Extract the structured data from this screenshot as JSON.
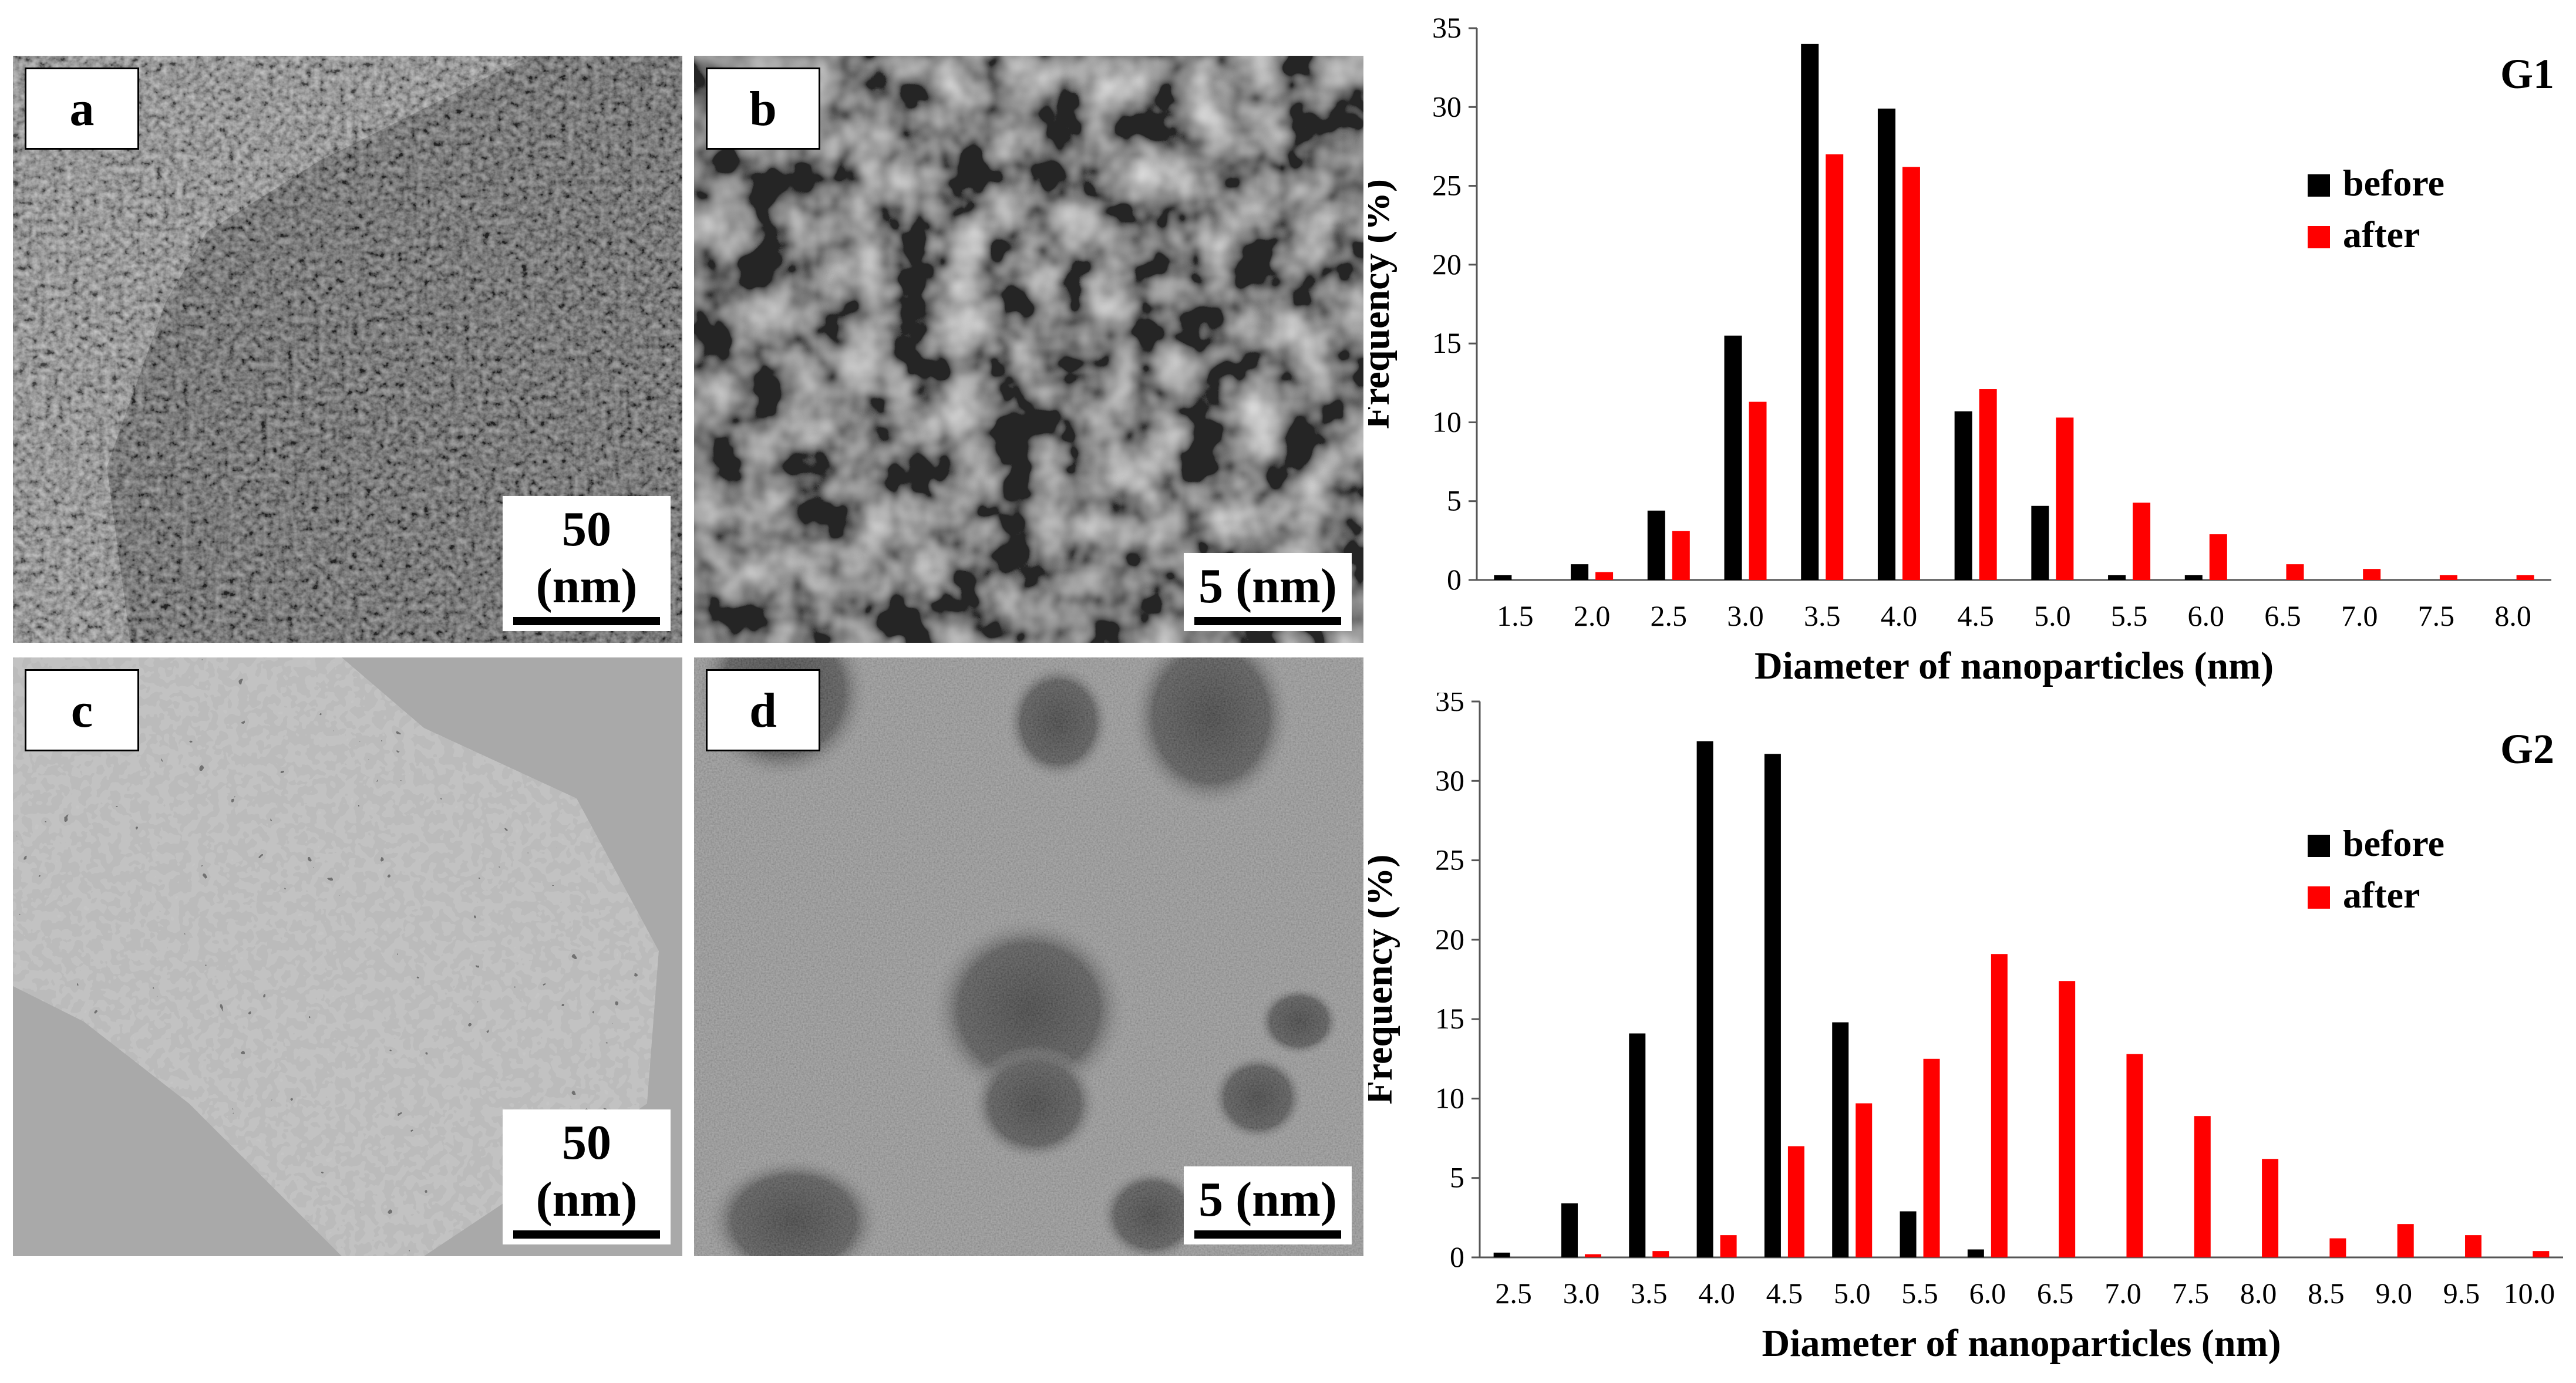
{
  "panels": [
    {
      "id": "a",
      "label": "a",
      "scale": "50 (nm)"
    },
    {
      "id": "b",
      "label": "b",
      "scale": "5 (nm)"
    },
    {
      "id": "c",
      "label": "c",
      "scale": "50 (nm)"
    },
    {
      "id": "d",
      "label": "d",
      "scale": "5 (nm)"
    }
  ],
  "chart_data": [
    {
      "type": "bar",
      "title": "G1",
      "xlabel": "Diameter of nanoparticles (nm)",
      "ylabel": "Frequency (%)",
      "ylim": [
        0,
        35
      ],
      "yticks": [
        "0",
        "5",
        "10",
        "15",
        "20",
        "25",
        "30",
        "35"
      ],
      "grid": false,
      "legend_position": "top-right",
      "categories": [
        "1.5",
        "2.0",
        "2.5",
        "3.0",
        "3.5",
        "4.0",
        "4.5",
        "5.0",
        "5.5",
        "6.0",
        "6.5",
        "7.0",
        "7.5",
        "8.0"
      ],
      "series": [
        {
          "name": "before",
          "color": "#000000",
          "values": [
            0.3,
            1.0,
            4.4,
            15.5,
            34.0,
            29.9,
            10.7,
            4.7,
            0.3,
            0.3,
            0,
            0,
            0,
            0
          ]
        },
        {
          "name": "after",
          "color": "#ff0000",
          "values": [
            0,
            0.5,
            3.1,
            11.3,
            27.0,
            26.2,
            12.1,
            10.3,
            4.9,
            2.9,
            1.0,
            0.7,
            0.3,
            0.3
          ]
        }
      ]
    },
    {
      "type": "bar",
      "title": "G2",
      "xlabel": "Diameter of nanoparticles (nm)",
      "ylabel": "Frequency (%)",
      "ylim": [
        0,
        35
      ],
      "yticks": [
        "0",
        "5",
        "10",
        "15",
        "20",
        "25",
        "30",
        "35"
      ],
      "grid": false,
      "legend_position": "top-right",
      "categories": [
        "2.5",
        "3.0",
        "3.5",
        "4.0",
        "4.5",
        "5.0",
        "5.5",
        "6.0",
        "6.5",
        "7.0",
        "7.5",
        "8.0",
        "8.5",
        "9.0",
        "9.5",
        "10.0"
      ],
      "series": [
        {
          "name": "before",
          "color": "#000000",
          "values": [
            0.3,
            3.4,
            14.1,
            32.5,
            31.7,
            14.8,
            2.9,
            0.5,
            0,
            0,
            0,
            0,
            0,
            0,
            0,
            0
          ]
        },
        {
          "name": "after",
          "color": "#ff0000",
          "values": [
            0,
            0.2,
            0.4,
            1.4,
            7.0,
            9.7,
            12.5,
            19.1,
            17.4,
            12.8,
            8.9,
            6.2,
            1.2,
            2.1,
            1.4,
            0.4
          ]
        }
      ]
    }
  ]
}
